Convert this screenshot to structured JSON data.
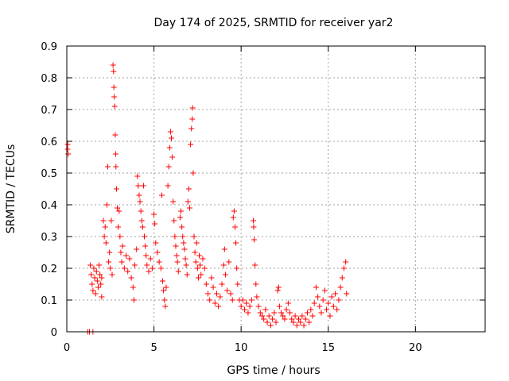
{
  "chart_data": {
    "type": "scatter",
    "title": "Day 174 of 2025, SRMTID for receiver yar2",
    "xlabel": "GPS time / hours",
    "ylabel": "SRMTID / TECUs",
    "xlim": [
      0,
      24
    ],
    "ylim": [
      0,
      0.9
    ],
    "xticks": [
      0,
      5,
      10,
      15,
      20
    ],
    "yticks": [
      0,
      0.1,
      0.2,
      0.3,
      0.4,
      0.5,
      0.6,
      0.7,
      0.8,
      0.9
    ],
    "xtick_labels": [
      "0",
      "5",
      "10",
      "15",
      "20"
    ],
    "ytick_labels": [
      "0",
      "0.1",
      "0.2",
      "0.3",
      "0.4",
      "0.5",
      "0.6",
      "0.7",
      "0.8",
      "0.9"
    ],
    "grid": true,
    "marker": "+",
    "color": "#ff0000",
    "series": [
      {
        "name": "SRMTID",
        "points": [
          [
            0.05,
            0.59
          ],
          [
            0.05,
            0.575
          ],
          [
            0.08,
            0.56
          ],
          [
            1.2,
            0.0
          ],
          [
            1.3,
            0.0
          ],
          [
            1.5,
            0.0
          ],
          [
            1.35,
            0.21
          ],
          [
            1.4,
            0.18
          ],
          [
            1.45,
            0.15
          ],
          [
            1.5,
            0.13
          ],
          [
            1.55,
            0.2
          ],
          [
            1.6,
            0.17
          ],
          [
            1.65,
            0.12
          ],
          [
            1.7,
            0.19
          ],
          [
            1.75,
            0.16
          ],
          [
            1.8,
            0.14
          ],
          [
            1.85,
            0.21
          ],
          [
            1.9,
            0.18
          ],
          [
            1.95,
            0.15
          ],
          [
            2.0,
            0.11
          ],
          [
            2.0,
            0.17
          ],
          [
            2.1,
            0.35
          ],
          [
            2.15,
            0.3
          ],
          [
            2.2,
            0.33
          ],
          [
            2.25,
            0.28
          ],
          [
            2.3,
            0.4
          ],
          [
            2.35,
            0.52
          ],
          [
            2.4,
            0.22
          ],
          [
            2.45,
            0.25
          ],
          [
            2.5,
            0.2
          ],
          [
            2.55,
            0.35
          ],
          [
            2.6,
            0.18
          ],
          [
            2.65,
            0.84
          ],
          [
            2.68,
            0.82
          ],
          [
            2.7,
            0.77
          ],
          [
            2.72,
            0.74
          ],
          [
            2.75,
            0.71
          ],
          [
            2.78,
            0.62
          ],
          [
            2.8,
            0.56
          ],
          [
            2.82,
            0.52
          ],
          [
            2.85,
            0.45
          ],
          [
            2.9,
            0.39
          ],
          [
            2.95,
            0.33
          ],
          [
            3.0,
            0.38
          ],
          [
            3.05,
            0.3
          ],
          [
            3.1,
            0.25
          ],
          [
            3.15,
            0.22
          ],
          [
            3.2,
            0.27
          ],
          [
            3.3,
            0.2
          ],
          [
            3.4,
            0.24
          ],
          [
            3.5,
            0.19
          ],
          [
            3.6,
            0.23
          ],
          [
            3.7,
            0.17
          ],
          [
            3.8,
            0.14
          ],
          [
            3.85,
            0.1
          ],
          [
            3.9,
            0.21
          ],
          [
            4.0,
            0.26
          ],
          [
            4.05,
            0.49
          ],
          [
            4.1,
            0.46
          ],
          [
            4.15,
            0.43
          ],
          [
            4.2,
            0.41
          ],
          [
            4.25,
            0.38
          ],
          [
            4.3,
            0.35
          ],
          [
            4.35,
            0.33
          ],
          [
            4.4,
            0.46
          ],
          [
            4.45,
            0.3
          ],
          [
            4.5,
            0.27
          ],
          [
            4.55,
            0.24
          ],
          [
            4.6,
            0.21
          ],
          [
            4.7,
            0.19
          ],
          [
            4.8,
            0.23
          ],
          [
            4.9,
            0.2
          ],
          [
            5.0,
            0.37
          ],
          [
            5.05,
            0.34
          ],
          [
            5.1,
            0.28
          ],
          [
            5.2,
            0.25
          ],
          [
            5.3,
            0.22
          ],
          [
            5.4,
            0.2
          ],
          [
            5.45,
            0.43
          ],
          [
            5.5,
            0.16
          ],
          [
            5.55,
            0.13
          ],
          [
            5.6,
            0.1
          ],
          [
            5.65,
            0.08
          ],
          [
            5.7,
            0.14
          ],
          [
            5.8,
            0.46
          ],
          [
            5.85,
            0.52
          ],
          [
            5.9,
            0.58
          ],
          [
            5.95,
            0.63
          ],
          [
            6.0,
            0.61
          ],
          [
            6.05,
            0.55
          ],
          [
            6.1,
            0.41
          ],
          [
            6.15,
            0.35
          ],
          [
            6.2,
            0.3
          ],
          [
            6.25,
            0.27
          ],
          [
            6.3,
            0.24
          ],
          [
            6.35,
            0.22
          ],
          [
            6.4,
            0.19
          ],
          [
            6.5,
            0.36
          ],
          [
            6.55,
            0.38
          ],
          [
            6.6,
            0.33
          ],
          [
            6.65,
            0.3
          ],
          [
            6.7,
            0.28
          ],
          [
            6.75,
            0.26
          ],
          [
            6.8,
            0.23
          ],
          [
            6.85,
            0.21
          ],
          [
            6.9,
            0.18
          ],
          [
            6.95,
            0.41
          ],
          [
            7.0,
            0.45
          ],
          [
            7.05,
            0.39
          ],
          [
            7.1,
            0.59
          ],
          [
            7.15,
            0.64
          ],
          [
            7.2,
            0.67
          ],
          [
            7.22,
            0.705
          ],
          [
            7.25,
            0.5
          ],
          [
            7.3,
            0.3
          ],
          [
            7.35,
            0.25
          ],
          [
            7.4,
            0.22
          ],
          [
            7.45,
            0.28
          ],
          [
            7.5,
            0.2
          ],
          [
            7.55,
            0.17
          ],
          [
            7.6,
            0.24
          ],
          [
            7.65,
            0.21
          ],
          [
            7.7,
            0.18
          ],
          [
            7.8,
            0.23
          ],
          [
            7.9,
            0.2
          ],
          [
            8.0,
            0.15
          ],
          [
            8.1,
            0.12
          ],
          [
            8.2,
            0.1
          ],
          [
            8.3,
            0.17
          ],
          [
            8.4,
            0.14
          ],
          [
            8.5,
            0.09
          ],
          [
            8.6,
            0.12
          ],
          [
            8.7,
            0.08
          ],
          [
            8.8,
            0.11
          ],
          [
            8.9,
            0.15
          ],
          [
            9.0,
            0.21
          ],
          [
            9.05,
            0.26
          ],
          [
            9.1,
            0.18
          ],
          [
            9.2,
            0.13
          ],
          [
            9.3,
            0.22
          ],
          [
            9.4,
            0.12
          ],
          [
            9.5,
            0.1
          ],
          [
            9.55,
            0.36
          ],
          [
            9.6,
            0.38
          ],
          [
            9.65,
            0.33
          ],
          [
            9.7,
            0.28
          ],
          [
            9.75,
            0.2
          ],
          [
            9.8,
            0.15
          ],
          [
            9.9,
            0.1
          ],
          [
            10.0,
            0.08
          ],
          [
            10.1,
            0.1
          ],
          [
            10.2,
            0.07
          ],
          [
            10.3,
            0.09
          ],
          [
            10.4,
            0.06
          ],
          [
            10.5,
            0.08
          ],
          [
            10.6,
            0.1
          ],
          [
            10.7,
            0.35
          ],
          [
            10.72,
            0.33
          ],
          [
            10.75,
            0.29
          ],
          [
            10.8,
            0.21
          ],
          [
            10.85,
            0.15
          ],
          [
            10.9,
            0.11
          ],
          [
            11.0,
            0.08
          ],
          [
            11.1,
            0.06
          ],
          [
            11.2,
            0.05
          ],
          [
            11.3,
            0.04
          ],
          [
            11.4,
            0.07
          ],
          [
            11.5,
            0.03
          ],
          [
            11.6,
            0.05
          ],
          [
            11.7,
            0.02
          ],
          [
            11.8,
            0.04
          ],
          [
            11.9,
            0.06
          ],
          [
            12.0,
            0.03
          ],
          [
            12.1,
            0.13
          ],
          [
            12.15,
            0.14
          ],
          [
            12.2,
            0.08
          ],
          [
            12.3,
            0.06
          ],
          [
            12.4,
            0.05
          ],
          [
            12.5,
            0.04
          ],
          [
            12.6,
            0.07
          ],
          [
            12.7,
            0.09
          ],
          [
            12.8,
            0.06
          ],
          [
            12.9,
            0.04
          ],
          [
            13.0,
            0.03
          ],
          [
            13.1,
            0.05
          ],
          [
            13.2,
            0.02
          ],
          [
            13.3,
            0.04
          ],
          [
            13.4,
            0.03
          ],
          [
            13.5,
            0.05
          ],
          [
            13.6,
            0.02
          ],
          [
            13.7,
            0.04
          ],
          [
            13.8,
            0.06
          ],
          [
            13.9,
            0.03
          ],
          [
            14.0,
            0.07
          ],
          [
            14.1,
            0.05
          ],
          [
            14.2,
            0.09
          ],
          [
            14.3,
            0.14
          ],
          [
            14.4,
            0.11
          ],
          [
            14.5,
            0.08
          ],
          [
            14.6,
            0.06
          ],
          [
            14.7,
            0.1
          ],
          [
            14.8,
            0.13
          ],
          [
            14.9,
            0.07
          ],
          [
            15.0,
            0.09
          ],
          [
            15.1,
            0.05
          ],
          [
            15.2,
            0.11
          ],
          [
            15.3,
            0.08
          ],
          [
            15.4,
            0.12
          ],
          [
            15.5,
            0.07
          ],
          [
            15.6,
            0.1
          ],
          [
            15.7,
            0.14
          ],
          [
            15.8,
            0.17
          ],
          [
            15.9,
            0.2
          ],
          [
            16.0,
            0.22
          ],
          [
            16.05,
            0.12
          ]
        ]
      }
    ]
  }
}
